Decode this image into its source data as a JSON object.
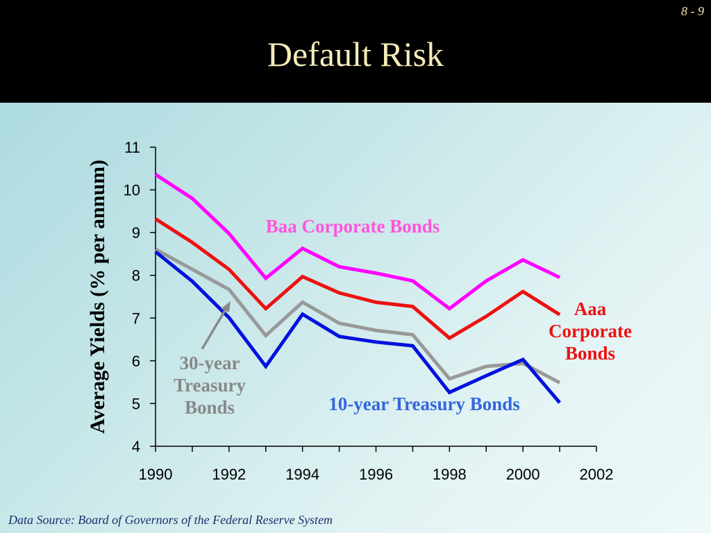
{
  "slide_number": "8 - 9",
  "title": "Default Risk",
  "source_note": "Data Source: Board of Governors of the Federal Reserve System",
  "chart_data": {
    "type": "line",
    "ylabel": "Average Yields (% per annum)",
    "xlabel": "",
    "xlim": [
      1990,
      2002
    ],
    "ylim": [
      4,
      11
    ],
    "x_ticks": [
      1990,
      1992,
      1994,
      1996,
      1998,
      2000,
      2002
    ],
    "y_ticks": [
      4,
      5,
      6,
      7,
      8,
      9,
      10,
      11
    ],
    "x": [
      1990,
      1991,
      1992,
      1993,
      1994,
      1995,
      1996,
      1997,
      1998,
      1999,
      2000,
      2001
    ],
    "grid": false,
    "series": [
      {
        "name": "Baa Corporate Bonds",
        "color": "#ff00ff",
        "values": [
          10.36,
          9.8,
          8.98,
          7.93,
          8.63,
          8.2,
          8.05,
          7.87,
          7.22,
          7.87,
          8.36,
          7.95
        ]
      },
      {
        "name": "Aaa Corporate Bonds",
        "color": "#ee1111",
        "values": [
          9.32,
          8.77,
          8.14,
          7.22,
          7.97,
          7.59,
          7.37,
          7.27,
          6.53,
          7.04,
          7.62,
          7.08
        ]
      },
      {
        "name": "30-year Treasury Bonds",
        "color": "#999999",
        "values": [
          8.61,
          8.14,
          7.67,
          6.59,
          7.37,
          6.88,
          6.71,
          6.61,
          5.58,
          5.87,
          5.94,
          5.49
        ]
      },
      {
        "name": "10-year Treasury Bonds",
        "color": "#0011dd",
        "values": [
          8.55,
          7.86,
          7.01,
          5.87,
          7.09,
          6.57,
          6.44,
          6.35,
          5.26,
          5.65,
          6.03,
          5.02
        ]
      }
    ],
    "annotations": {
      "baa": {
        "lines": [
          "Baa Corporate Bonds"
        ],
        "color": "#ff55dd"
      },
      "aaa": {
        "lines": [
          "Aaa",
          "Corporate",
          "Bonds"
        ],
        "color": "#ee1111"
      },
      "t30": {
        "lines": [
          "30-year",
          "Treasury",
          "Bonds"
        ],
        "color": "#888888"
      },
      "t10": {
        "lines": [
          "10-year Treasury Bonds"
        ],
        "color": "#3366dd"
      }
    }
  }
}
